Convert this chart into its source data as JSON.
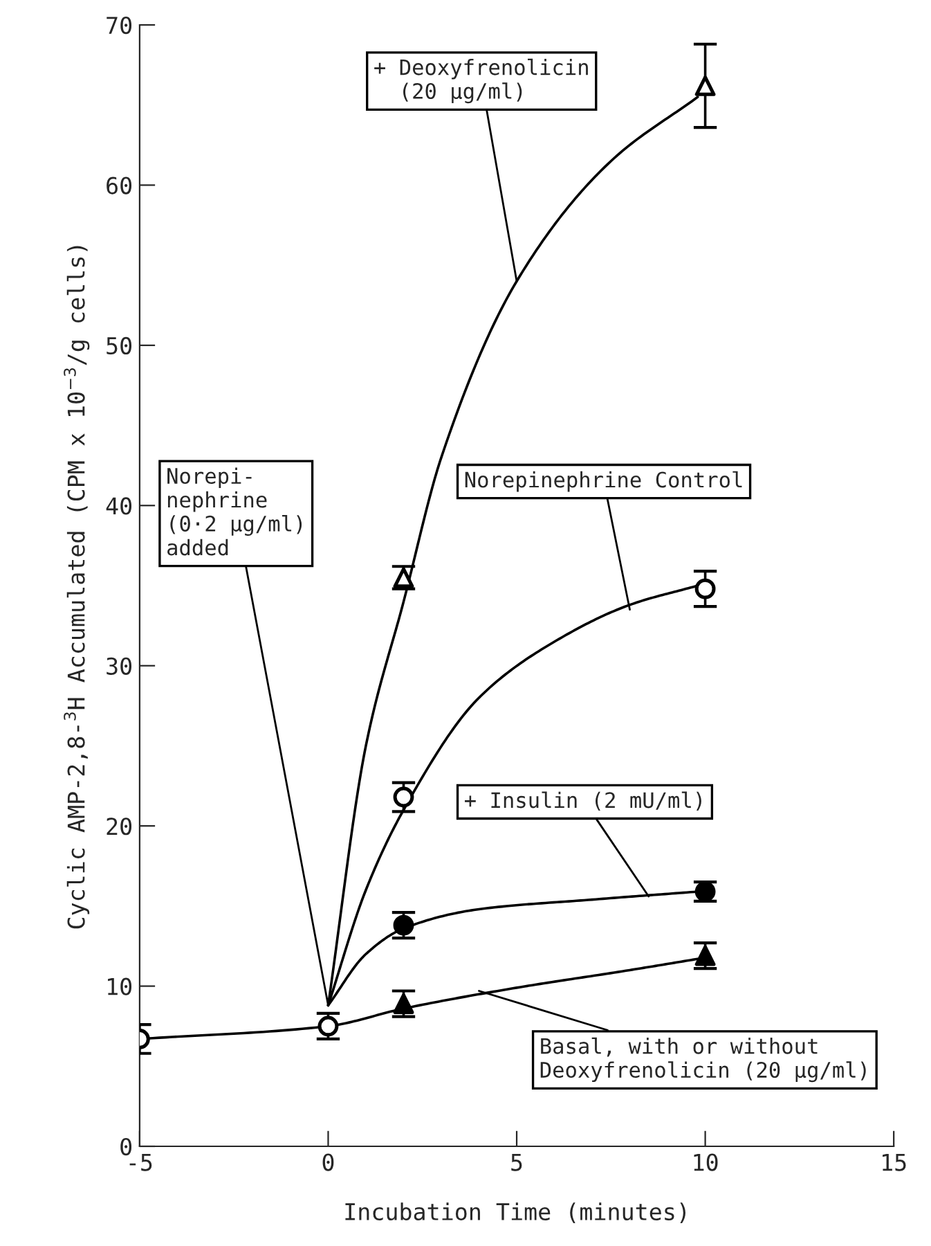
{
  "chart_data": {
    "type": "scatter",
    "xlabel": "Incubation Time (minutes)",
    "ylabel": "Cyclic AMP-2,8-$^{3}$H Accumulated (CPM x 10$^{−3}$/g cells)",
    "xlim": [
      -5,
      15
    ],
    "ylim": [
      0,
      70
    ],
    "xticks": [
      -5,
      0,
      5,
      10,
      15
    ],
    "yticks": [
      0,
      10,
      20,
      30,
      40,
      50,
      60,
      70
    ],
    "grid": false,
    "legend": false,
    "series": [
      {
        "type": "line",
        "color": "#000000",
        "line_style": "solid",
        "marker": "none",
        "x": [
          -5,
          0,
          2,
          5,
          8,
          9.8
        ],
        "values": [
          6.7,
          7.5,
          8.6,
          9.9,
          11,
          11.7
        ]
      },
      {
        "type": "line",
        "color": "#000000",
        "line_style": "solid",
        "marker": "none",
        "x": [
          0,
          1,
          2,
          4,
          7,
          9.8
        ],
        "values": [
          8.8,
          12,
          13.6,
          14.8,
          15.4,
          15.9
        ]
      },
      {
        "type": "line",
        "color": "#000000",
        "line_style": "solid",
        "marker": "none",
        "x": [
          0,
          1,
          2,
          4,
          6,
          8,
          9.8
        ],
        "values": [
          8.8,
          16,
          21,
          28,
          31.5,
          33.8,
          35
        ]
      },
      {
        "type": "line",
        "color": "#000000",
        "line_style": "solid",
        "marker": "none",
        "x": [
          0,
          1,
          2,
          3,
          5,
          7.5,
          9.8
        ],
        "values": [
          8.8,
          25,
          34,
          43,
          54,
          61.5,
          65.5
        ]
      },
      {
        "color": "#ffffff",
        "marker": "circle",
        "x": [
          -5,
          0
        ],
        "values": [
          6.7,
          7.5
        ],
        "errors": [
          0.9,
          0.8
        ]
      },
      {
        "color": "#000000",
        "marker": "triangle",
        "x": [
          2,
          10
        ],
        "values": [
          8.9,
          11.9
        ],
        "errors": [
          0.8,
          0.8
        ]
      },
      {
        "color": "#000000",
        "marker": "circle",
        "x": [
          2,
          10
        ],
        "values": [
          13.8,
          15.9
        ],
        "errors": [
          0.8,
          0.6
        ]
      },
      {
        "color": "#ffffff",
        "marker": "circle",
        "x": [
          2,
          10
        ],
        "values": [
          21.8,
          34.8
        ],
        "errors": [
          0.9,
          1.1
        ]
      },
      {
        "color": "#ffffff",
        "marker": "triangle",
        "x": [
          2,
          10
        ],
        "values": [
          35.5,
          66.2
        ],
        "errors": [
          0.7,
          2.6
        ]
      }
    ],
    "annotations": [
      {
        "text": "+ Deoxyfrenolicin\n  (20 μg/ml)",
        "x": 5,
        "y": 54
      },
      {
        "text": "Norepi-\nnephrine\n(0·2 μg/ml)\nadded",
        "x": 0,
        "y": 8.8
      },
      {
        "text": "Norepinephrine Control",
        "x": 8,
        "y": 33.5
      },
      {
        "text": "+ Insulin (2 mU/ml)",
        "x": 8.5,
        "y": 15.6
      },
      {
        "text": "Basal, with or without\nDeoxyfrenolicin (20 μg/ml)",
        "x": 4,
        "y": 9.7
      }
    ]
  }
}
